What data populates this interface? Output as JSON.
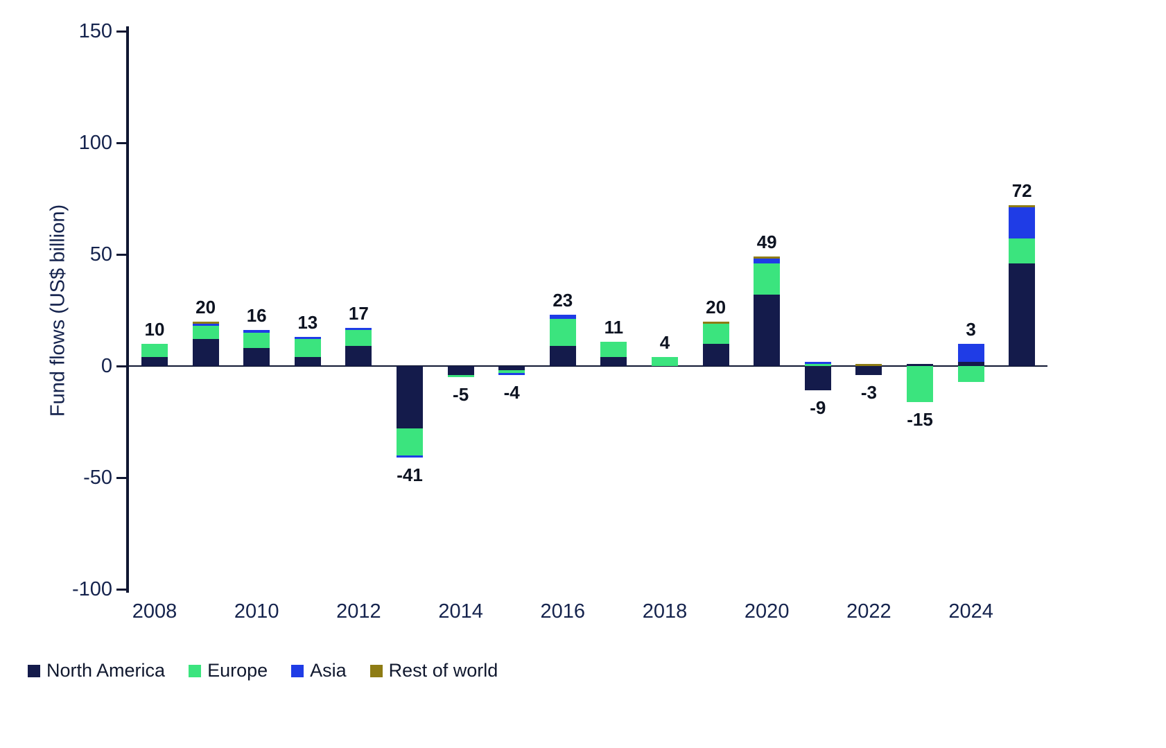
{
  "chart_data": {
    "type": "bar",
    "stacked": true,
    "title": "",
    "xlabel": "",
    "ylabel": "Fund flows (US$ billion)",
    "ylim": [
      -100,
      150
    ],
    "yticks": [
      150,
      100,
      50,
      0,
      -50,
      -100
    ],
    "xtick_labels": [
      "2008",
      "2010",
      "2012",
      "2014",
      "2016",
      "2018",
      "2020",
      "2022",
      "2024"
    ],
    "years": [
      2008,
      2009,
      2010,
      2011,
      2012,
      2013,
      2014,
      2015,
      2016,
      2017,
      2018,
      2019,
      2020,
      2021,
      2022,
      2023,
      2024,
      2025
    ],
    "series": [
      {
        "name": "North America",
        "color": "#141b4b",
        "values": [
          4,
          12,
          8,
          4,
          9,
          -28,
          -4,
          -2,
          9,
          4,
          0,
          10,
          32,
          -11,
          -4,
          1,
          2,
          46
        ]
      },
      {
        "name": "Europe",
        "color": "#3be47e",
        "values": [
          6,
          6,
          7,
          8,
          7,
          -12,
          -1,
          -1,
          12,
          7,
          4,
          9,
          14,
          1,
          0,
          -16,
          -7,
          11
        ]
      },
      {
        "name": "Asia",
        "color": "#1f3ce6",
        "values": [
          0,
          1,
          1,
          1,
          1,
          -1,
          0,
          -1,
          2,
          0,
          0,
          0,
          2,
          1,
          0,
          0,
          8,
          14
        ]
      },
      {
        "name": "Rest of world",
        "color": "#8e7c14",
        "values": [
          0,
          1,
          0,
          0,
          0,
          0,
          0,
          0,
          0,
          0,
          0,
          1,
          1,
          0,
          1,
          0,
          0,
          1
        ]
      }
    ],
    "totals": [
      10,
      20,
      16,
      13,
      17,
      -41,
      -5,
      -4,
      23,
      11,
      4,
      20,
      49,
      -9,
      -3,
      -15,
      3,
      72
    ],
    "grid": false,
    "legend_position": "bottom-left",
    "legend_items": [
      "North America",
      "Europe",
      "Asia",
      "Rest of world"
    ]
  }
}
